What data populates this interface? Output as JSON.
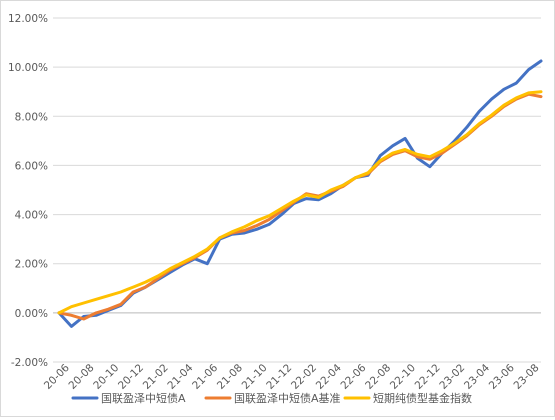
{
  "chart_data": {
    "type": "line",
    "title": "",
    "xlabel": "",
    "ylabel": "",
    "ylim": [
      -2.0,
      12.0
    ],
    "y_ticks": [
      "-2.00%",
      "0.00%",
      "2.00%",
      "4.00%",
      "6.00%",
      "8.00%",
      "10.00%",
      "12.00%"
    ],
    "y_tick_values": [
      -2,
      0,
      2,
      4,
      6,
      8,
      10,
      12
    ],
    "x_tick_labels": [
      "20-06",
      "20-08",
      "20-10",
      "20-12",
      "21-02",
      "21-04",
      "21-06",
      "21-08",
      "21-10",
      "21-12",
      "22-02",
      "22-04",
      "22-06",
      "22-08",
      "22-10",
      "22-12",
      "23-02",
      "23-04",
      "23-06",
      "23-08"
    ],
    "grid": {
      "horizontal": true,
      "vertical": false
    },
    "legend_position": "bottom",
    "x": [
      "20-06",
      "20-07",
      "20-08",
      "20-09",
      "20-10",
      "20-11",
      "20-12",
      "21-01",
      "21-02",
      "21-03",
      "21-04",
      "21-05",
      "21-06",
      "21-07",
      "21-08",
      "21-09",
      "21-10",
      "21-11",
      "21-12",
      "22-01",
      "22-02",
      "22-03",
      "22-04",
      "22-05",
      "22-06",
      "22-07",
      "22-08",
      "22-09",
      "22-10",
      "22-11",
      "22-12",
      "23-01",
      "23-02",
      "23-03",
      "23-04",
      "23-05",
      "23-06",
      "23-07",
      "23-08",
      "23-09"
    ],
    "series": [
      {
        "name": "国联盈泽中短债A",
        "color": "#4472c4",
        "values": [
          0.0,
          -0.55,
          -0.15,
          -0.1,
          0.1,
          0.3,
          0.8,
          1.05,
          1.35,
          1.65,
          1.95,
          2.2,
          2.0,
          3.0,
          3.2,
          3.25,
          3.4,
          3.6,
          4.0,
          4.45,
          4.65,
          4.6,
          4.85,
          5.2,
          5.5,
          5.6,
          6.4,
          6.8,
          7.1,
          6.3,
          5.95,
          6.5,
          7.0,
          7.55,
          8.2,
          8.7,
          9.1,
          9.35,
          9.9,
          10.25
        ]
      },
      {
        "name": "国联盈泽中短债A基准",
        "color": "#ed7d31",
        "values": [
          0.0,
          -0.1,
          -0.25,
          0.0,
          0.15,
          0.35,
          0.85,
          1.05,
          1.4,
          1.75,
          2.0,
          2.25,
          2.55,
          3.05,
          3.25,
          3.35,
          3.55,
          3.8,
          4.15,
          4.5,
          4.85,
          4.75,
          4.95,
          5.15,
          5.5,
          5.65,
          6.15,
          6.45,
          6.6,
          6.35,
          6.25,
          6.5,
          6.85,
          7.2,
          7.65,
          8.0,
          8.4,
          8.7,
          8.9,
          8.8
        ]
      },
      {
        "name": "短期纯债型基金指数",
        "color": "#ffc000",
        "values": [
          0.0,
          0.25,
          0.4,
          0.55,
          0.7,
          0.85,
          1.05,
          1.25,
          1.5,
          1.8,
          2.05,
          2.3,
          2.6,
          3.05,
          3.3,
          3.5,
          3.75,
          3.95,
          4.25,
          4.55,
          4.8,
          4.7,
          5.0,
          5.2,
          5.5,
          5.7,
          6.2,
          6.5,
          6.65,
          6.45,
          6.35,
          6.6,
          6.9,
          7.25,
          7.7,
          8.05,
          8.45,
          8.75,
          8.95,
          9.0
        ]
      }
    ]
  }
}
